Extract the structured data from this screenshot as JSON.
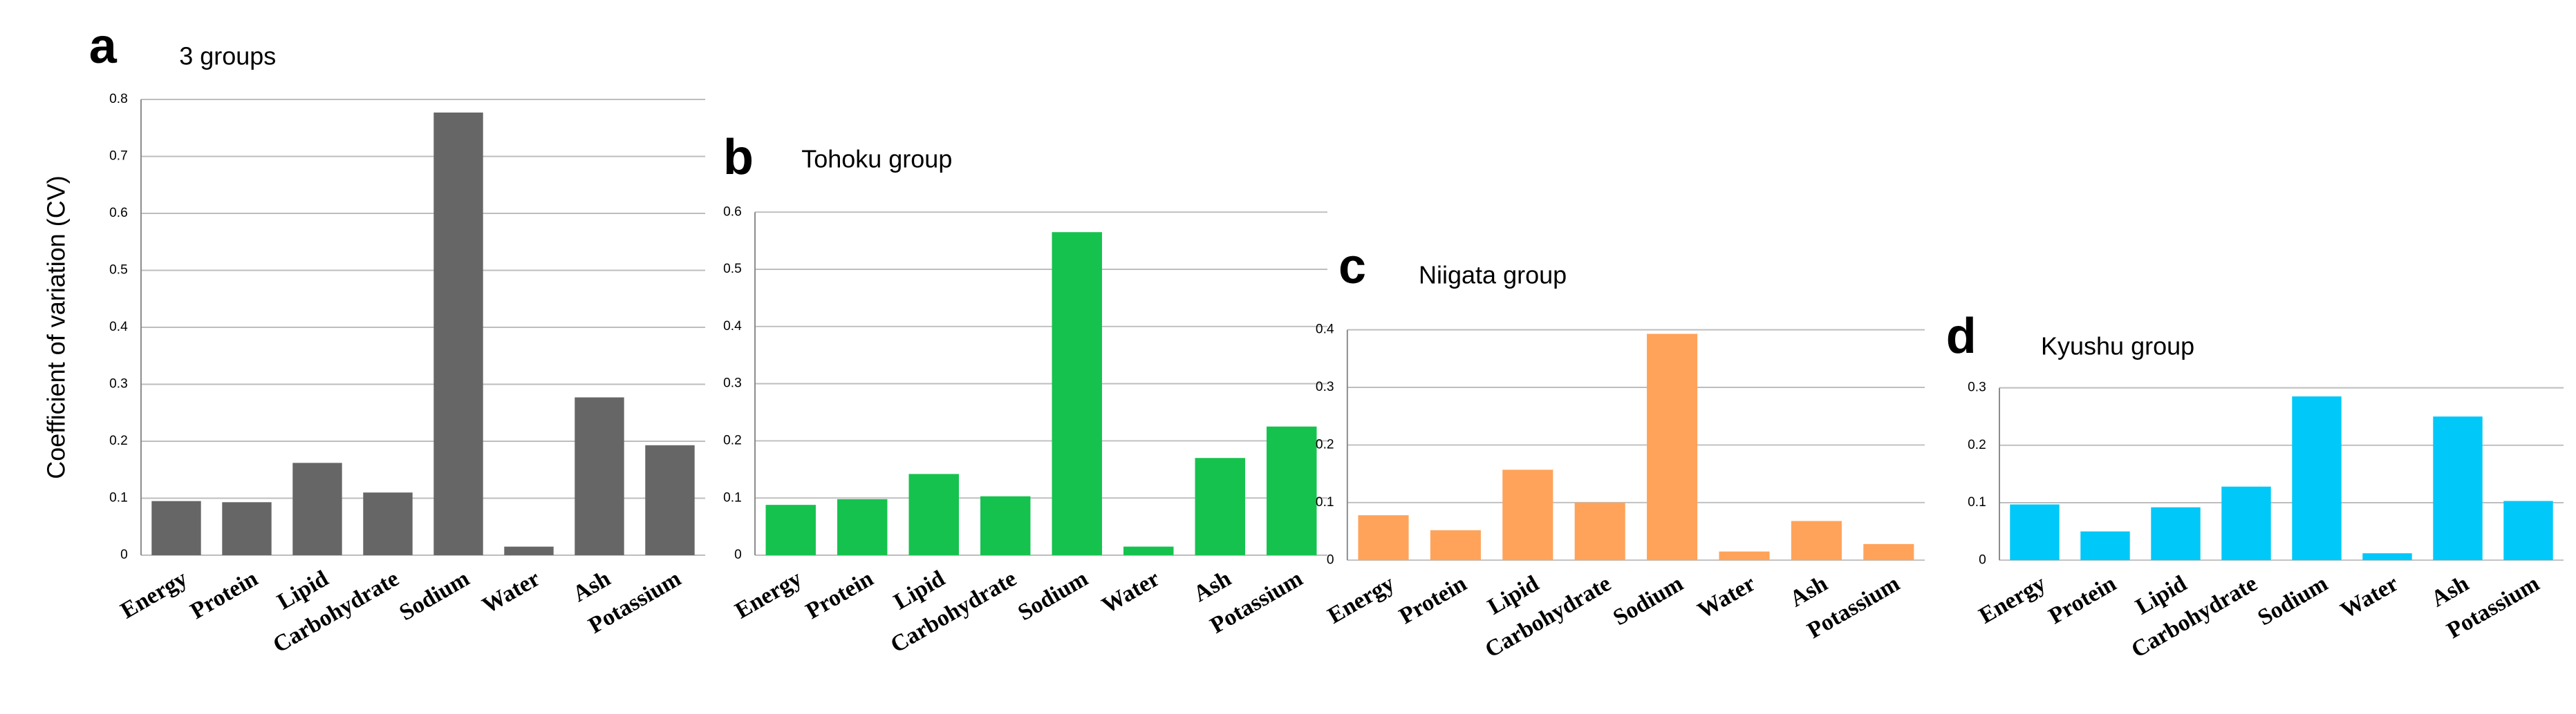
{
  "chart_data": [
    {
      "type": "bar",
      "panel_label": "a",
      "title": "3 groups",
      "y_label": "Coefficient of variation (CV)",
      "categories": [
        "Energy",
        "Protein",
        "Lipid",
        "Carbohydrate",
        "Sodium",
        "Water",
        "Ash",
        "Potassium"
      ],
      "values": [
        0.095,
        0.093,
        0.162,
        0.11,
        0.777,
        0.015,
        0.277,
        0.193
      ],
      "color": "#666666",
      "ylim": [
        0,
        0.8
      ],
      "yticks": [
        0,
        0.1,
        0.2,
        0.3,
        0.4,
        0.5,
        0.6,
        0.7,
        0.8
      ],
      "grid": true
    },
    {
      "type": "bar",
      "panel_label": "b",
      "title": "Tohoku group",
      "categories": [
        "Energy",
        "Protein",
        "Lipid",
        "Carbohydrate",
        "Sodium",
        "Water",
        "Ash",
        "Potassium"
      ],
      "values": [
        0.088,
        0.098,
        0.142,
        0.103,
        0.565,
        0.015,
        0.17,
        0.225
      ],
      "color": "#16c24e",
      "ylim": [
        0,
        0.6
      ],
      "yticks": [
        0,
        0.1,
        0.2,
        0.3,
        0.4,
        0.5,
        0.6
      ],
      "grid": true
    },
    {
      "type": "bar",
      "panel_label": "c",
      "title": "Niigata group",
      "categories": [
        "Energy",
        "Protein",
        "Lipid",
        "Carbohydrate",
        "Sodium",
        "Water",
        "Ash",
        "Potassium"
      ],
      "values": [
        0.078,
        0.052,
        0.157,
        0.1,
        0.393,
        0.015,
        0.068,
        0.028
      ],
      "color": "#ffa35a",
      "ylim": [
        0,
        0.4
      ],
      "yticks": [
        0,
        0.1,
        0.2,
        0.3,
        0.4
      ],
      "grid": true
    },
    {
      "type": "bar",
      "panel_label": "d",
      "title": "Kyushu group",
      "categories": [
        "Energy",
        "Protein",
        "Lipid",
        "Carbohydrate",
        "Sodium",
        "Water",
        "Ash",
        "Potassium"
      ],
      "values": [
        0.097,
        0.05,
        0.092,
        0.128,
        0.285,
        0.012,
        0.25,
        0.103
      ],
      "color": "#00c8f8",
      "ylim": [
        0,
        0.3
      ],
      "yticks": [
        0,
        0.1,
        0.2,
        0.3
      ],
      "grid": true
    }
  ]
}
